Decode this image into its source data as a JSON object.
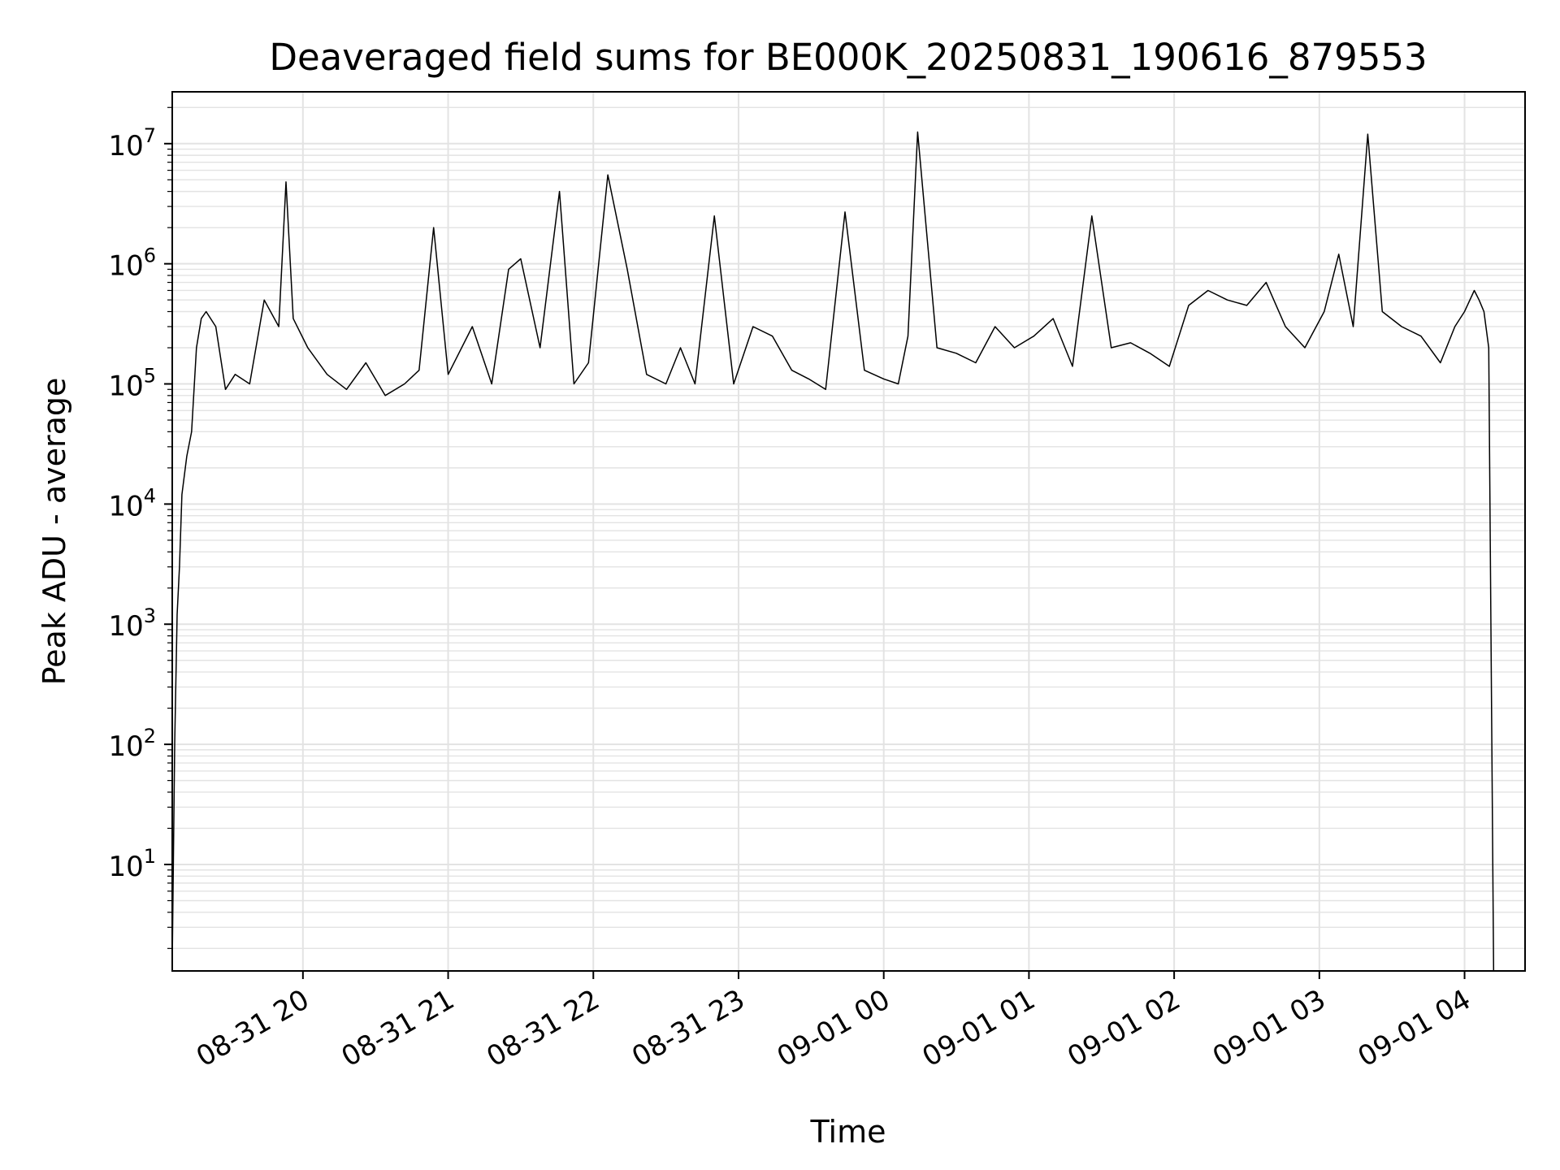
{
  "chart_data": {
    "type": "line",
    "title": "Deaveraged field sums for BE000K_20250831_190616_879553",
    "xlabel": "Time",
    "ylabel": "Peak ADU - average",
    "x_tick_labels": [
      "08-31 20",
      "08-31 21",
      "08-31 22",
      "08-31 23",
      "09-01 00",
      "09-01 01",
      "09-01 02",
      "09-01 03",
      "09-01 04"
    ],
    "y_scale": "log",
    "y_ticks": [
      {
        "base": "10",
        "exp": "1",
        "value": 10
      },
      {
        "base": "10",
        "exp": "2",
        "value": 100
      },
      {
        "base": "10",
        "exp": "3",
        "value": 1000
      },
      {
        "base": "10",
        "exp": "4",
        "value": 10000
      },
      {
        "base": "10",
        "exp": "5",
        "value": 100000
      },
      {
        "base": "10",
        "exp": "6",
        "value": 1000000
      },
      {
        "base": "10",
        "exp": "7",
        "value": 10000000
      }
    ],
    "ylim": [
      1.3,
      27000000
    ],
    "xlim": [
      "2025-08-31 19:06",
      "2025-09-01 04:25"
    ],
    "grid": true,
    "line_color": "#000000",
    "grid_color": "#e3e3e3",
    "x_times": [
      "2025-08-31 19:06",
      "2025-08-31 19:07",
      "2025-08-31 19:08",
      "2025-08-31 19:09",
      "2025-08-31 19:10",
      "2025-08-31 19:12",
      "2025-08-31 19:14",
      "2025-08-31 19:16",
      "2025-08-31 19:18",
      "2025-08-31 19:20",
      "2025-08-31 19:24",
      "2025-08-31 19:28",
      "2025-08-31 19:32",
      "2025-08-31 19:38",
      "2025-08-31 19:44",
      "2025-08-31 19:50",
      "2025-08-31 19:53",
      "2025-08-31 19:56",
      "2025-08-31 20:02",
      "2025-08-31 20:10",
      "2025-08-31 20:18",
      "2025-08-31 20:26",
      "2025-08-31 20:34",
      "2025-08-31 20:42",
      "2025-08-31 20:48",
      "2025-08-31 20:54",
      "2025-08-31 21:00",
      "2025-08-31 21:10",
      "2025-08-31 21:18",
      "2025-08-31 21:25",
      "2025-08-31 21:30",
      "2025-08-31 21:38",
      "2025-08-31 21:46",
      "2025-08-31 21:52",
      "2025-08-31 21:58",
      "2025-08-31 22:06",
      "2025-08-31 22:14",
      "2025-08-31 22:22",
      "2025-08-31 22:30",
      "2025-08-31 22:36",
      "2025-08-31 22:42",
      "2025-08-31 22:50",
      "2025-08-31 22:58",
      "2025-08-31 23:06",
      "2025-08-31 23:14",
      "2025-08-31 23:22",
      "2025-08-31 23:29",
      "2025-08-31 23:36",
      "2025-08-31 23:44",
      "2025-08-31 23:52",
      "2025-09-01 00:00",
      "2025-09-01 00:06",
      "2025-09-01 00:10",
      "2025-09-01 00:14",
      "2025-09-01 00:22",
      "2025-09-01 00:30",
      "2025-09-01 00:38",
      "2025-09-01 00:46",
      "2025-09-01 00:54",
      "2025-09-01 01:02",
      "2025-09-01 01:10",
      "2025-09-01 01:18",
      "2025-09-01 01:26",
      "2025-09-01 01:34",
      "2025-09-01 01:42",
      "2025-09-01 01:50",
      "2025-09-01 01:58",
      "2025-09-01 02:06",
      "2025-09-01 02:14",
      "2025-09-01 02:22",
      "2025-09-01 02:30",
      "2025-09-01 02:38",
      "2025-09-01 02:46",
      "2025-09-01 02:54",
      "2025-09-01 03:02",
      "2025-09-01 03:08",
      "2025-09-01 03:14",
      "2025-09-01 03:20",
      "2025-09-01 03:26",
      "2025-09-01 03:34",
      "2025-09-01 03:42",
      "2025-09-01 03:50",
      "2025-09-01 03:56",
      "2025-09-01 04:00",
      "2025-09-01 04:04",
      "2025-09-01 04:06",
      "2025-09-01 04:08",
      "2025-09-01 04:10",
      "2025-09-01 04:12"
    ],
    "y_values": [
      1.5,
      100,
      1200,
      3000,
      12000,
      25000,
      40000,
      200000,
      350000,
      400000,
      300000,
      90000,
      120000,
      100000,
      500000,
      300000,
      4800000,
      350000,
      200000,
      120000,
      90000,
      150000,
      80000,
      100000,
      130000,
      2000000,
      120000,
      300000,
      100000,
      900000,
      1100000,
      200000,
      4000000,
      100000,
      150000,
      5500000,
      900000,
      120000,
      100000,
      200000,
      100000,
      2500000,
      100000,
      300000,
      250000,
      130000,
      110000,
      90000,
      2700000,
      130000,
      110000,
      100000,
      250000,
      12500000,
      200000,
      180000,
      150000,
      300000,
      200000,
      250000,
      350000,
      140000,
      2500000,
      200000,
      220000,
      180000,
      140000,
      450000,
      600000,
      500000,
      450000,
      700000,
      300000,
      200000,
      400000,
      1200000,
      300000,
      12000000,
      400000,
      300000,
      250000,
      150000,
      300000,
      400000,
      600000,
      500000,
      400000,
      200000,
      1.3
    ]
  }
}
